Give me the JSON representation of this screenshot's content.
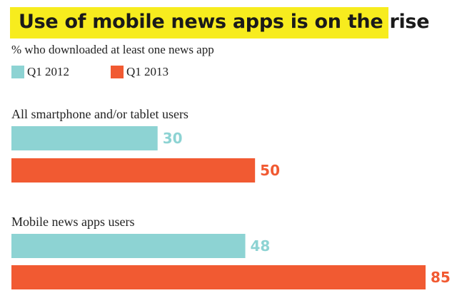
{
  "colors": {
    "title_bg": "#f7ec1e",
    "q1_2012": "#8dd3d3",
    "q1_2013": "#f15a32"
  },
  "chart_data": {
    "type": "bar",
    "orientation": "horizontal",
    "title": "Use of mobile news apps is on the rise",
    "subtitle": "% who downloaded at least one news app",
    "categories": [
      "All smartphone and/or tablet users",
      "Mobile news apps users"
    ],
    "series": [
      {
        "name": "Q1 2012",
        "values": [
          30,
          48
        ],
        "color": "#8dd3d3"
      },
      {
        "name": "Q1 2013",
        "values": [
          50,
          85
        ],
        "color": "#f15a32"
      }
    ],
    "value_labels": [
      [
        "30",
        "48"
      ],
      [
        "50",
        "85"
      ]
    ],
    "xlim": [
      0,
      85
    ],
    "grid": false,
    "legend": "top-left"
  }
}
